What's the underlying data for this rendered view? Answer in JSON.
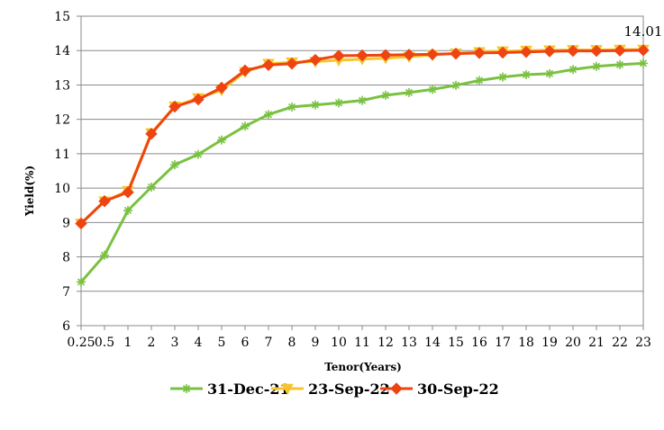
{
  "chart_data": {
    "type": "line",
    "title": "",
    "xlabel": "Tenor(Years)",
    "ylabel": "Yield(%)",
    "ylim": [
      6,
      15
    ],
    "yticks": [
      "6",
      "7",
      "8",
      "9",
      "10",
      "11",
      "12",
      "13",
      "14",
      "15"
    ],
    "categories": [
      "0.25",
      "0.5",
      "1",
      "2",
      "3",
      "4",
      "5",
      "6",
      "7",
      "8",
      "9",
      "10",
      "11",
      "12",
      "13",
      "14",
      "15",
      "16",
      "17",
      "18",
      "19",
      "20",
      "21",
      "22",
      "23"
    ],
    "grid": "horizontal",
    "legend_position": "bottom",
    "series": [
      {
        "name": "31-Dec-21",
        "color": "#7ac142",
        "marker": "star",
        "values": [
          7.27,
          8.05,
          9.35,
          10.03,
          10.68,
          10.98,
          11.4,
          11.8,
          12.14,
          12.36,
          12.42,
          12.48,
          12.55,
          12.7,
          12.78,
          12.87,
          12.99,
          13.13,
          13.23,
          13.3,
          13.33,
          13.45,
          13.54,
          13.59,
          13.63
        ]
      },
      {
        "name": "23-Sep-22",
        "color": "#f7c52b",
        "marker": "triangle-down",
        "values": [
          8.97,
          9.62,
          9.92,
          11.6,
          12.38,
          12.62,
          12.85,
          13.38,
          13.62,
          13.66,
          13.68,
          13.72,
          13.75,
          13.78,
          13.82,
          13.87,
          13.92,
          13.96,
          13.98,
          14.0,
          14.01,
          14.02,
          14.02,
          14.03,
          14.03
        ]
      },
      {
        "name": "30-Sep-22",
        "color": "#ee4411",
        "marker": "diamond",
        "values": [
          8.97,
          9.62,
          9.88,
          11.58,
          12.37,
          12.58,
          12.92,
          13.42,
          13.58,
          13.62,
          13.73,
          13.85,
          13.86,
          13.87,
          13.88,
          13.89,
          13.91,
          13.93,
          13.94,
          13.96,
          13.98,
          13.99,
          13.99,
          14.0,
          14.01
        ]
      }
    ],
    "annotations": [
      {
        "text": "14.01",
        "series": "30-Sep-22",
        "category": "23"
      }
    ]
  }
}
